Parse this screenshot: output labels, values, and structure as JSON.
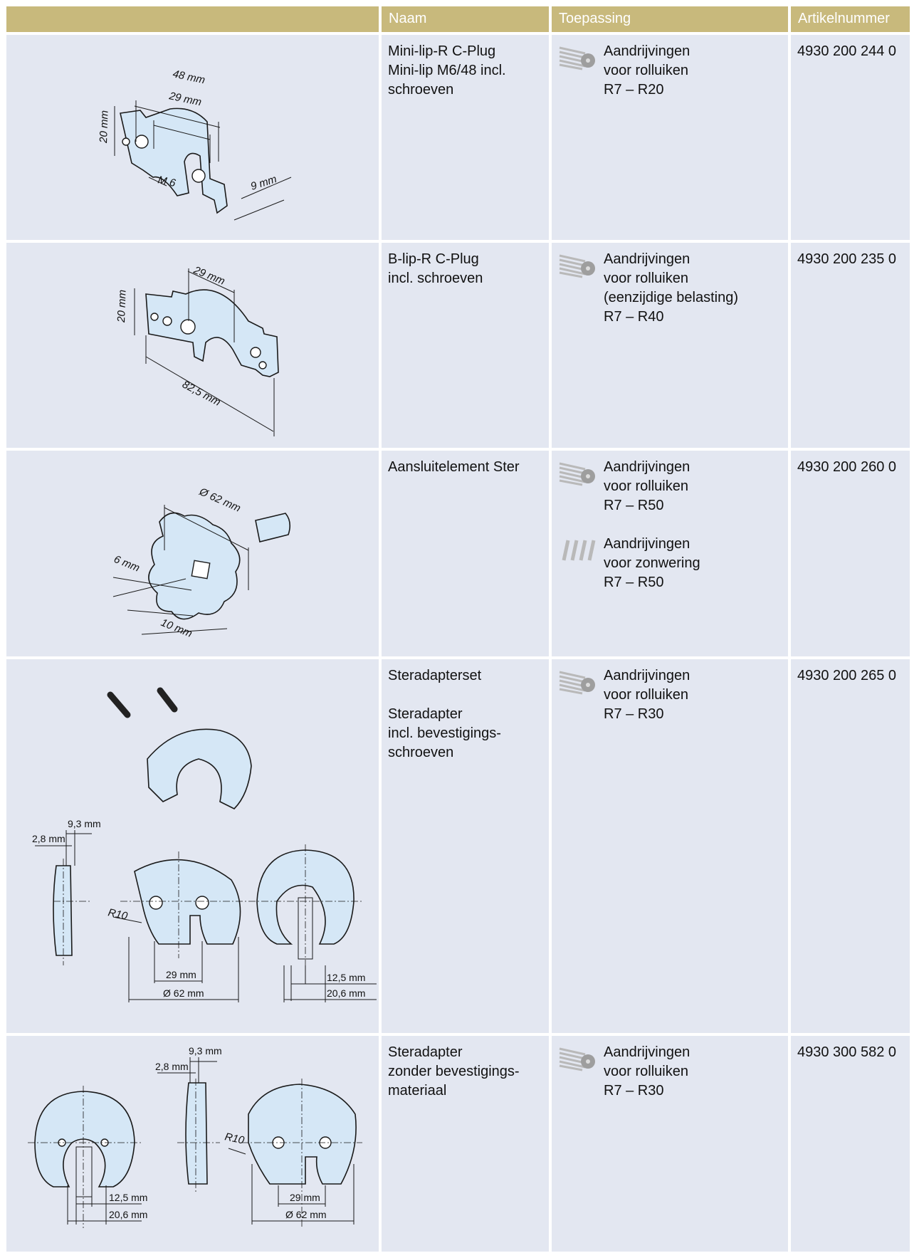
{
  "header": {
    "columns": [
      "Naam",
      "Toepassing",
      "Artikelnummer"
    ]
  },
  "rows": [
    {
      "drawing_labels": [
        "48 mm",
        "29 mm",
        "20 mm",
        "M 6",
        "9 mm"
      ],
      "naam": [
        [
          "Mini-lip-R C-Plug",
          "Mini-lip M6/48 incl.",
          "schroeven"
        ]
      ],
      "toepassing": [
        {
          "lines": [
            "Aandrijvingen",
            "voor rolluiken",
            "R7 – R20"
          ]
        }
      ],
      "artikelnummer": "4930 200 244 0"
    },
    {
      "drawing_labels": [
        "29 mm",
        "20 mm",
        "82,5 mm"
      ],
      "naam": [
        [
          "B-lip-R C-Plug",
          "incl. schroeven"
        ]
      ],
      "toepassing": [
        {
          "lines": [
            "Aandrijvingen",
            "voor rolluiken",
            "(eenzijdige belasting)",
            "R7 – R40"
          ]
        }
      ],
      "artikelnummer": "4930 200 235 0"
    },
    {
      "drawing_labels": [
        "Ø 62 mm",
        "6 mm",
        "10 mm"
      ],
      "naam": [
        [
          "Aansluitelement Ster"
        ]
      ],
      "toepassing": [
        {
          "lines": [
            "Aandrijvingen",
            "voor rolluiken",
            "R7 – R50"
          ]
        },
        {
          "lines": [
            "Aandrijvingen",
            "voor zonwering",
            "R7 – R50"
          ]
        }
      ],
      "artikelnummer": "4930 200 260 0"
    },
    {
      "drawing_labels": [
        "9,3 mm",
        "2,8 mm",
        "R10",
        "29 mm",
        "Ø 62 mm",
        "12,5 mm",
        "20,6 mm"
      ],
      "naam": [
        [
          "Steradapterset"
        ],
        [
          "Steradapter",
          "incl. bevestigings-",
          "schroeven"
        ]
      ],
      "toepassing": [
        {
          "lines": [
            "Aandrijvingen",
            "voor rolluiken",
            "R7 – R30"
          ]
        }
      ],
      "artikelnummer": "4930 200 265 0"
    },
    {
      "drawing_labels": [
        "9,3 mm",
        "2,8 mm",
        "R10",
        "29 mm",
        "Ø 62 mm",
        "12,5 mm",
        "20,6 mm"
      ],
      "naam": [
        [
          "Steradapter",
          "zonder bevestigings-",
          "materiaal"
        ]
      ],
      "toepassing": [
        {
          "lines": [
            "Aandrijvingen",
            "voor rolluiken",
            "R7 – R30"
          ]
        }
      ],
      "artikelnummer": "4930 300 582 0"
    }
  ]
}
